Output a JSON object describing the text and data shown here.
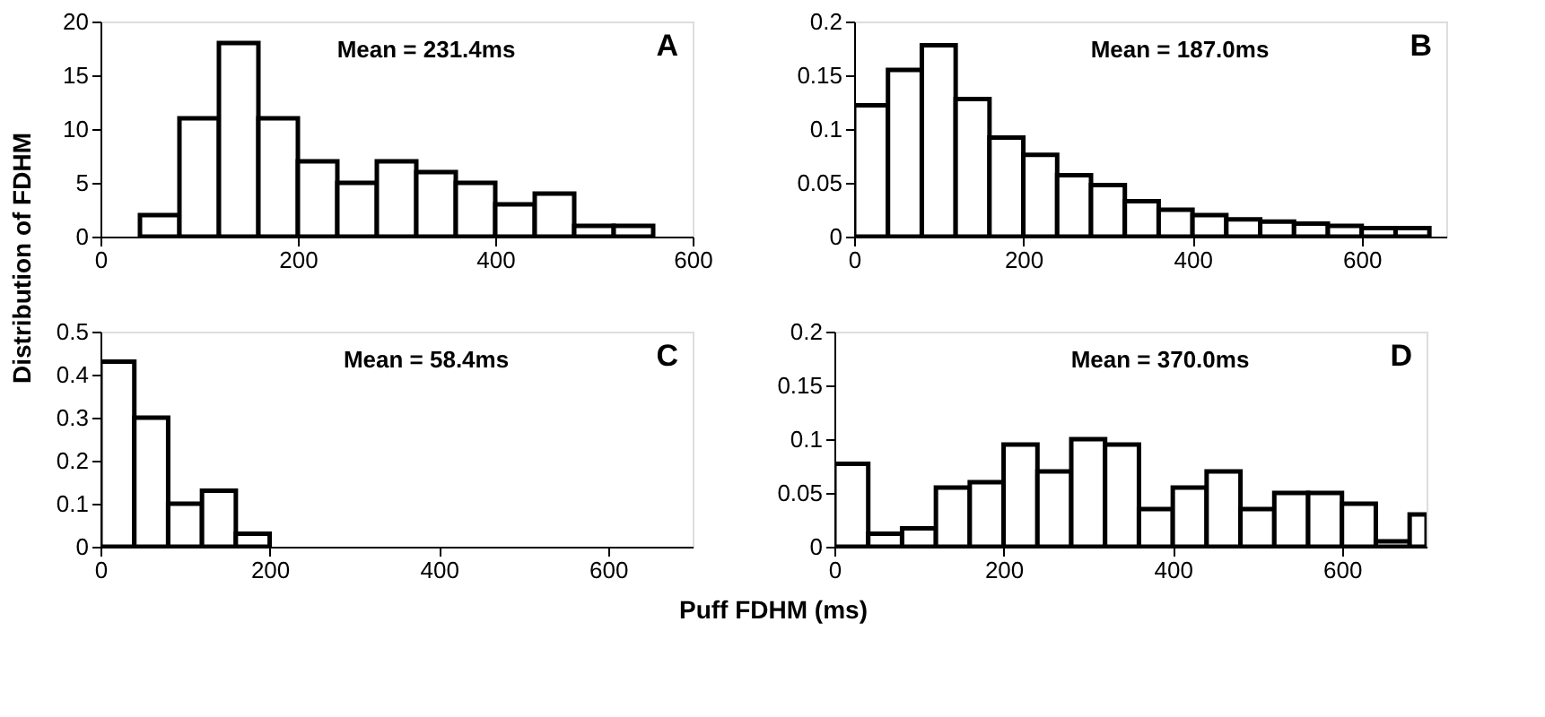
{
  "chart_data": [
    {
      "type": "histogram",
      "title": "A",
      "annotations": [
        "Mean = 231.4ms"
      ],
      "ylabel": "Distribution of FDHM",
      "xlabel": "Puff FDHM (ms)",
      "color": "#ffffff",
      "bins": [
        40,
        80,
        120,
        160,
        200,
        240,
        280,
        320,
        360,
        400,
        440,
        480,
        520,
        560
      ],
      "values": [
        2,
        11,
        18,
        11,
        7,
        5,
        7,
        6,
        5,
        3,
        4,
        1,
        1
      ],
      "xlim": [
        0,
        600
      ],
      "xticks": [
        0,
        200,
        400,
        600
      ],
      "ylim": [
        0,
        20
      ],
      "yticks": [
        0,
        5,
        10,
        15,
        20
      ],
      "grid": false
    },
    {
      "type": "histogram",
      "title": "B",
      "annotations": [
        "Mean = 187.0ms"
      ],
      "color": "#ffffff",
      "bins": [
        0,
        40,
        80,
        120,
        160,
        200,
        240,
        280,
        320,
        360,
        400,
        440,
        480,
        520,
        560,
        600,
        640,
        680
      ],
      "values": [
        0.122,
        0.155,
        0.178,
        0.128,
        0.092,
        0.076,
        0.057,
        0.048,
        0.033,
        0.025,
        0.02,
        0.016,
        0.014,
        0.012,
        0.01,
        0.008,
        0.008
      ],
      "xlim": [
        0,
        700
      ],
      "xticks": [
        0,
        200,
        400,
        600
      ],
      "ylim": [
        0,
        0.2
      ],
      "yticks": [
        0,
        0.05,
        0.1,
        0.15,
        0.2
      ],
      "grid": false
    },
    {
      "type": "histogram",
      "title": "C",
      "annotations": [
        "Mean = 58.4ms"
      ],
      "color": "#ffffff",
      "bins": [
        0,
        40,
        80,
        120,
        160,
        200,
        240,
        280,
        320,
        360,
        400,
        440,
        480,
        520,
        560,
        600,
        640,
        680
      ],
      "values": [
        0.43,
        0.3,
        0.1,
        0.13,
        0.03,
        0,
        0,
        0,
        0,
        0,
        0,
        0,
        0,
        0,
        0,
        0,
        0
      ],
      "xlim": [
        0,
        700
      ],
      "xticks": [
        0,
        200,
        400,
        600
      ],
      "ylim": [
        0,
        0.5
      ],
      "yticks": [
        0,
        0.1,
        0.2,
        0.3,
        0.4,
        0.5
      ],
      "grid": false
    },
    {
      "type": "histogram",
      "title": "D",
      "annotations": [
        "Mean = 370.0ms"
      ],
      "color": "#ffffff",
      "bins": [
        0,
        40,
        80,
        120,
        160,
        200,
        240,
        280,
        320,
        360,
        400,
        440,
        480,
        520,
        560,
        600,
        640,
        680,
        700
      ],
      "values": [
        0.077,
        0.012,
        0.017,
        0.055,
        0.06,
        0.095,
        0.07,
        0.1,
        0.095,
        0.035,
        0.055,
        0.07,
        0.035,
        0.05,
        0.05,
        0.04,
        0.005,
        0.03
      ],
      "xlim": [
        0,
        700
      ],
      "xticks": [
        0,
        200,
        400,
        600
      ],
      "ylim": [
        0,
        0.2
      ],
      "yticks": [
        0,
        0.05,
        0.1,
        0.15,
        0.2
      ],
      "grid": false
    }
  ]
}
